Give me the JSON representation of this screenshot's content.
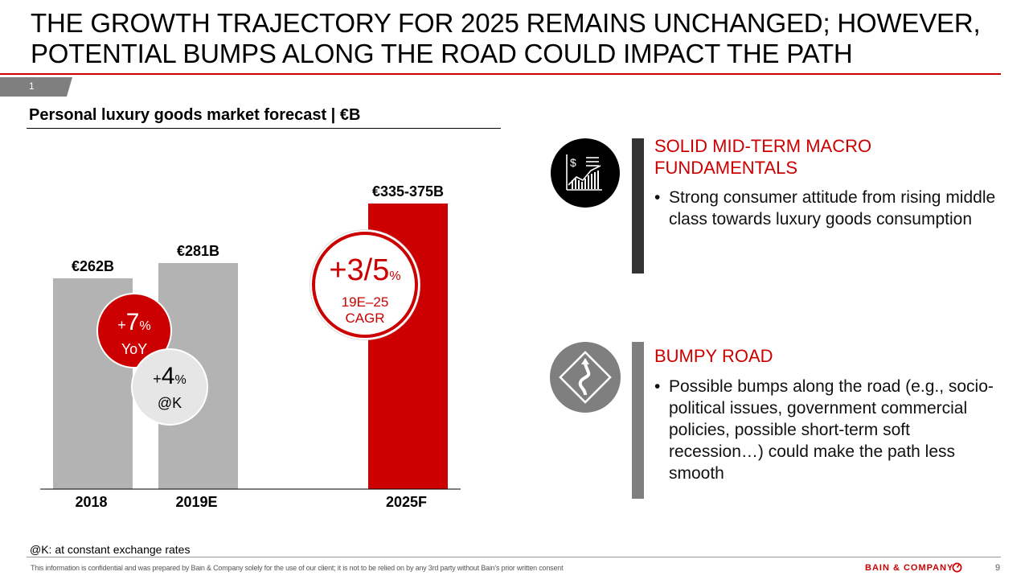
{
  "title": "THE GROWTH TRAJECTORY FOR 2025 REMAINS UNCHANGED; HOWEVER, POTENTIAL BUMPS ALONG THE ROAD COULD IMPACT THE PATH",
  "page_tab": "1",
  "colors": {
    "accent": "#cc0000",
    "bar_grey": "#b3b3b3",
    "dark": "#333333",
    "mid_grey": "#7f7f7f"
  },
  "chart_data": {
    "type": "bar",
    "title": "Personal luxury goods market forecast | €B",
    "categories": [
      "2018",
      "2019E",
      "2025F"
    ],
    "values": [
      262,
      281,
      355
    ],
    "value_labels": [
      "€262B",
      "€281B",
      "€335-375B"
    ],
    "range_2025F": [
      335,
      375
    ],
    "ylim": [
      0,
      380
    ],
    "grid": false
  },
  "callouts": {
    "yoy": {
      "plus": "+",
      "value": "7",
      "unit": "%",
      "label": "YoY"
    },
    "constant_fx": {
      "plus": "+",
      "value": "4",
      "unit": "%",
      "label": "@K"
    },
    "cagr": {
      "value": "+3/5",
      "unit": "%",
      "label1": "19E–25",
      "label2": "CAGR"
    }
  },
  "sections": [
    {
      "icon": "chart-dollar-icon",
      "title": "SOLID MID-TERM MACRO FUNDAMENTALS",
      "bullet": "Strong consumer attitude from rising middle class towards luxury goods consumption"
    },
    {
      "icon": "winding-road-sign-icon",
      "title": "BUMPY ROAD",
      "bullet": "Possible bumps along the road (e.g., socio-political issues, government commercial policies, possible short-term soft recession…) could make the path less smooth"
    }
  ],
  "footnote": "@K: at constant exchange rates",
  "confidential": "This information is confidential and was prepared by Bain & Company solely for the use of our client; it is not to be relied on by any 3rd party without Bain's prior written consent",
  "brand": "BAIN & COMPANY",
  "page_number": "9"
}
